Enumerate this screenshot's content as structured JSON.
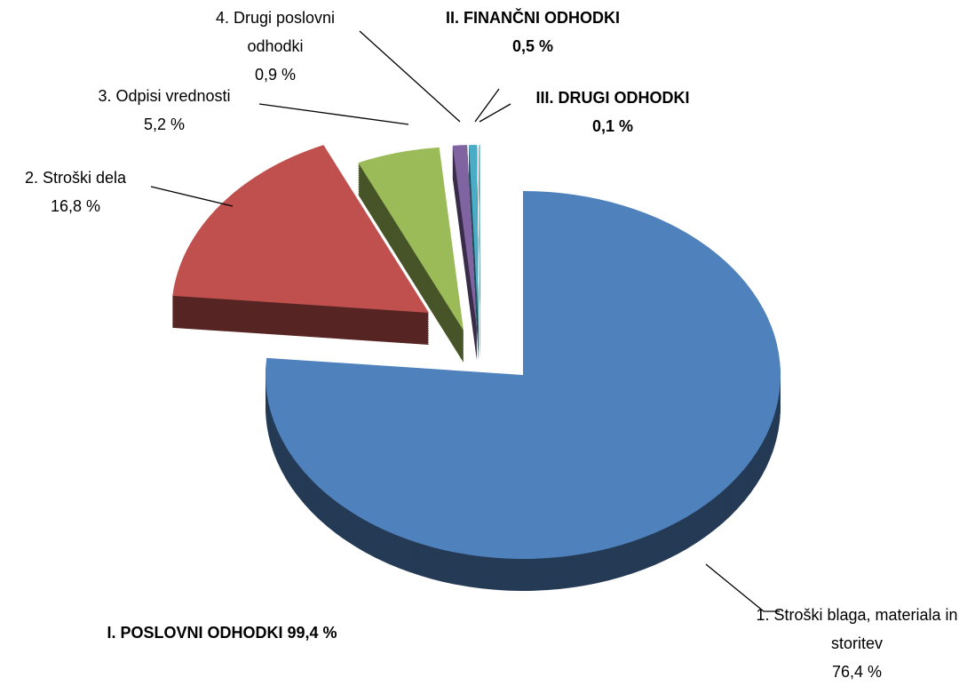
{
  "chart_data": {
    "type": "pie",
    "categories": [
      "1. Stroški blaga, materiala in storitev",
      "2. Stroški dela",
      "3. Odpisi vrednosti",
      "4. Drugi poslovni odhodki",
      "II. FINANČNI ODHODKI",
      "III. DRUGI ODHODKI"
    ],
    "values": [
      76.4,
      16.8,
      5.2,
      0.9,
      0.5,
      0.1
    ],
    "value_labels": [
      "76,4 %",
      "16,8 %",
      "5,2 %",
      "0,9 %",
      "0,5 %",
      "0,1 %"
    ],
    "colors": [
      "#4f81bd",
      "#c0504d",
      "#9bbb59",
      "#8064a2",
      "#4bacc6",
      "#93cddd"
    ],
    "annotation": "I. POSLOVNI ODHODKI 99,4 %"
  }
}
